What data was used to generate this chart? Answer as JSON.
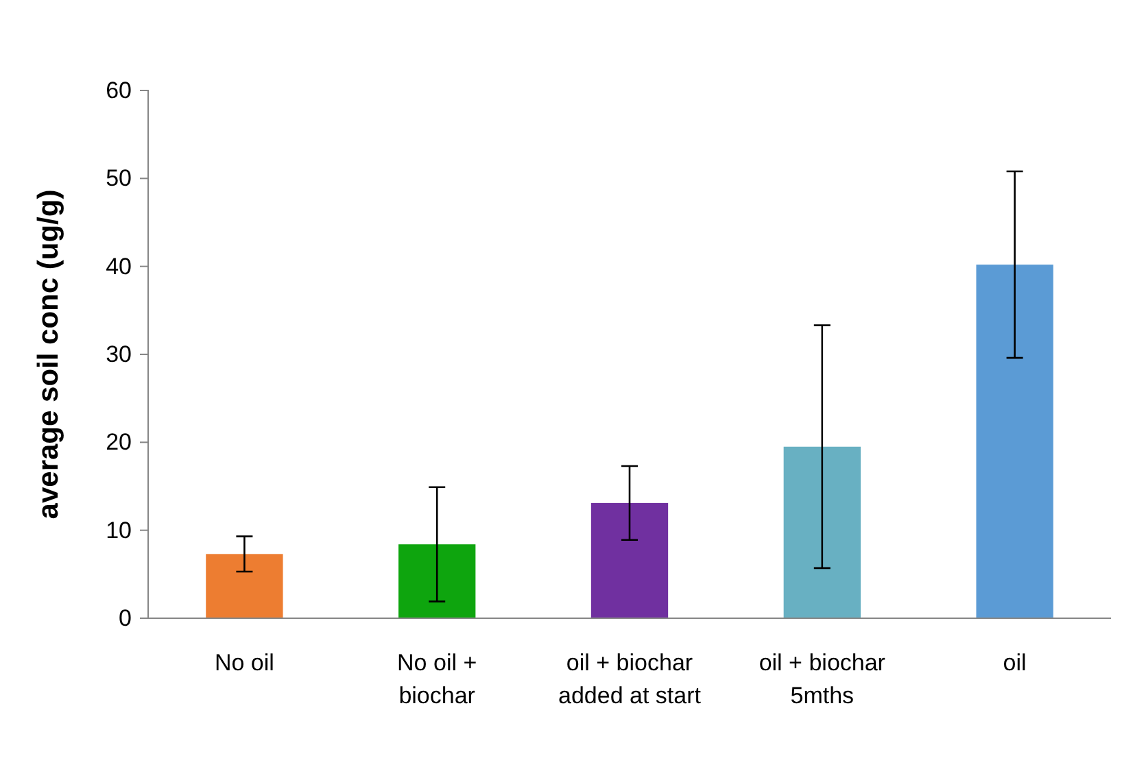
{
  "chart_data": {
    "type": "bar",
    "ylabel": "average soil conc (ug/g)",
    "categories": [
      "No oil",
      "No oil + biochar",
      "oil + biochar added at start",
      "oil + biochar 5mths",
      "oil"
    ],
    "values": [
      7.3,
      8.4,
      13.1,
      19.5,
      40.2
    ],
    "colors": [
      "#ed7d31",
      "#0ea50e",
      "#7030a0",
      "#68b0c2",
      "#5b9bd5"
    ],
    "errors": [
      2,
      6.5,
      4.2,
      13.8,
      10.6
    ],
    "ylim": [
      0,
      60
    ],
    "yticks": [
      0,
      10,
      20,
      30,
      40,
      50,
      60
    ]
  }
}
